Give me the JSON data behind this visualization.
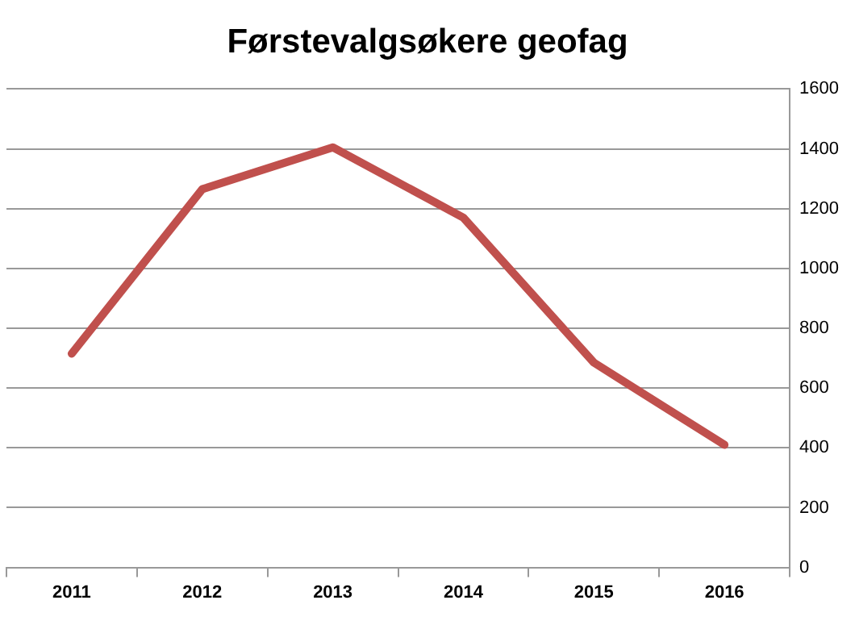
{
  "chart_data": {
    "type": "line",
    "title": "Førstevalgsøkere geofag",
    "categories": [
      "2011",
      "2012",
      "2013",
      "2014",
      "2015",
      "2016"
    ],
    "series": [
      {
        "color": "#c0504d",
        "values": [
          715,
          1265,
          1405,
          1170,
          685,
          410
        ]
      }
    ],
    "ylim": [
      0,
      1600
    ],
    "yticks": [
      0,
      200,
      400,
      600,
      800,
      1000,
      1200,
      1400,
      1600
    ],
    "grid": "y",
    "legend": false,
    "marker": "none",
    "line_style": "solid"
  }
}
